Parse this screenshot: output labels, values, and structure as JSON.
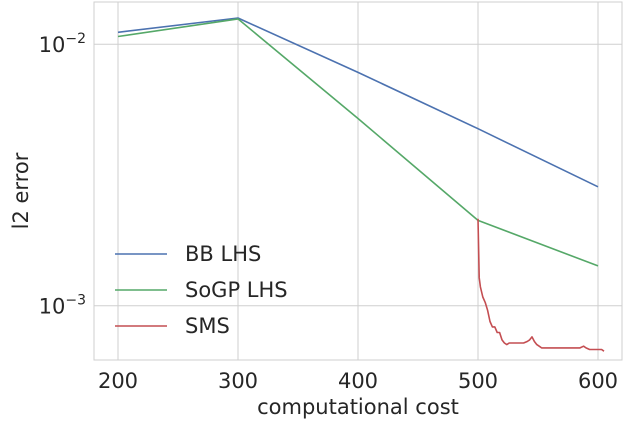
{
  "chart_data": {
    "type": "line",
    "xlabel": "computational cost",
    "ylabel": "l2 error",
    "xlim": [
      180,
      620
    ],
    "ylim": [
      0.00062,
      0.0145
    ],
    "y_scale": "log",
    "grid": true,
    "legend_position": "lower-left",
    "x_ticks": [
      200,
      300,
      400,
      500,
      600
    ],
    "x_tick_labels": [
      "200",
      "300",
      "400",
      "500",
      "600"
    ],
    "y_ticks": [
      0.01,
      0.001
    ],
    "y_tick_labels": [
      {
        "base": "10",
        "exp": "−2"
      },
      {
        "base": "10",
        "exp": "−3"
      }
    ],
    "series": [
      {
        "name": "BB LHS",
        "color": "#4c72b0",
        "x": [
          200,
          300,
          400,
          500,
          600
        ],
        "y": [
          0.0111,
          0.0126,
          0.0078,
          0.00475,
          0.00285
        ]
      },
      {
        "name": "SoGP LHS",
        "color": "#55a868",
        "x": [
          200,
          300,
          400,
          500,
          600
        ],
        "y": [
          0.0107,
          0.0125,
          0.0052,
          0.00212,
          0.00142
        ]
      },
      {
        "name": "SMS",
        "color": "#c44e52",
        "x": [
          500,
          501,
          502,
          504,
          506,
          508,
          510,
          512,
          514,
          516,
          518,
          520,
          522,
          524,
          526,
          528,
          530,
          532,
          535,
          538,
          541,
          543,
          545,
          547,
          549,
          551,
          553,
          556,
          560,
          565,
          570,
          575,
          580,
          585,
          588,
          590,
          593,
          596,
          600,
          603,
          605
        ],
        "y": [
          0.00215,
          0.00128,
          0.00118,
          0.00108,
          0.00103,
          0.00096,
          0.00087,
          0.00083,
          0.00083,
          0.00079,
          0.00079,
          0.00074,
          0.00072,
          0.00071,
          0.00072,
          0.00072,
          0.00072,
          0.00072,
          0.00072,
          0.00072,
          0.00073,
          0.00074,
          0.00076,
          0.00073,
          0.00071,
          0.0007,
          0.00069,
          0.00069,
          0.00069,
          0.00069,
          0.00069,
          0.00069,
          0.00069,
          0.00069,
          0.0007,
          0.00069,
          0.00068,
          0.00068,
          0.00068,
          0.00068,
          0.00067
        ]
      }
    ]
  }
}
